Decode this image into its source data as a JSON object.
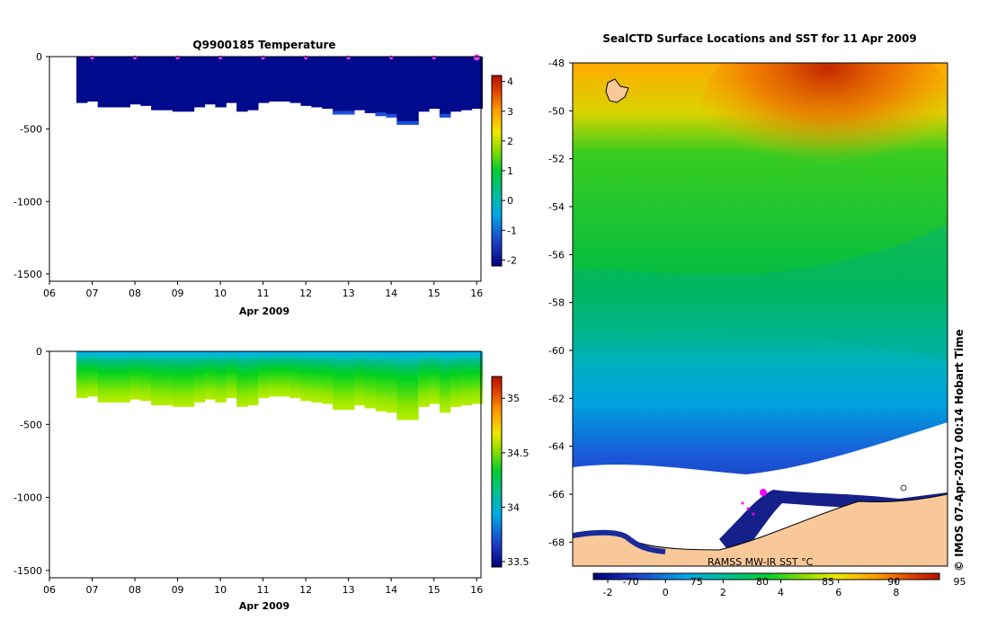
{
  "chart_data": [
    {
      "type": "heatmap",
      "name": "temperature-section",
      "title": "Q9900185  Temperature",
      "xlabel": "Apr 2009",
      "ylabel": "",
      "x_ticks": [
        "06",
        "07",
        "08",
        "09",
        "10",
        "11",
        "12",
        "13",
        "14",
        "15",
        "16"
      ],
      "xlim": [
        6,
        16.1
      ],
      "y_ticks": [
        0,
        -500,
        -1000,
        -1500
      ],
      "ylim": [
        -1550,
        0
      ],
      "colorbar": {
        "ticks": [
          4,
          3,
          2,
          1,
          0,
          -1,
          -2
        ],
        "range": [
          -2.2,
          4.2
        ]
      },
      "profile_days": [
        6.63,
        6.88,
        7.13,
        7.38,
        7.63,
        7.88,
        8.13,
        8.38,
        8.63,
        8.88,
        9.13,
        9.38,
        9.63,
        9.88,
        10.13,
        10.38,
        10.63,
        10.88,
        11.13,
        11.38,
        11.63,
        11.88,
        12.13,
        12.38,
        12.63,
        12.88,
        13.13,
        13.38,
        13.63,
        13.88,
        14.13,
        14.38,
        14.63,
        14.88,
        15.13,
        15.38,
        15.63,
        15.88
      ],
      "profile_max_depth": [
        -320,
        -310,
        -350,
        -350,
        -350,
        -330,
        -340,
        -370,
        -370,
        -380,
        -380,
        -350,
        -330,
        -350,
        -320,
        -380,
        -370,
        -320,
        -310,
        -310,
        -320,
        -340,
        -350,
        -360,
        -400,
        -400,
        -370,
        -390,
        -410,
        -420,
        -470,
        -470,
        -380,
        -360,
        -420,
        -380,
        -370,
        -360
      ],
      "surface_markers": [
        7,
        8,
        9,
        10,
        11,
        12,
        13,
        14,
        15,
        16
      ],
      "values_description_levels": [
        -1.8,
        -1.5
      ]
    },
    {
      "type": "heatmap",
      "name": "salinity-section",
      "title": "",
      "xlabel": "Apr 2009",
      "x_ticks": [
        "06",
        "07",
        "08",
        "09",
        "10",
        "11",
        "12",
        "13",
        "14",
        "15",
        "16"
      ],
      "xlim": [
        6,
        16.1
      ],
      "y_ticks": [
        0,
        -500,
        -1000,
        -1500
      ],
      "ylim": [
        -1550,
        0
      ],
      "colorbar": {
        "ticks": [
          "35",
          "34.5",
          "34",
          "33.5"
        ],
        "range": [
          33.45,
          35.2
        ]
      },
      "surface_salinity": 33.9,
      "bottom_salinity": 34.55
    },
    {
      "type": "heatmap",
      "name": "sst-map",
      "title": "SealCTD Surface Locations and SST for 11 Apr 2009",
      "y_ticks": [
        "-48",
        "-50",
        "-52",
        "-54",
        "-56",
        "-58",
        "-60",
        "-62",
        "-64",
        "-66",
        "-68"
      ],
      "ylim": [
        -69,
        -48
      ],
      "colorbar_c": [
        "-2",
        "0",
        "2",
        "4",
        "6",
        "8"
      ],
      "colorbar_f": [
        "-70",
        "75",
        "80",
        "85",
        "90",
        "95"
      ],
      "sst_range": [
        -2.5,
        9.5
      ],
      "annotation": "RAMSS MW-IR SST °C",
      "credit": "© IMOS 07-Apr-2017 00:14 Hobart Time"
    }
  ]
}
